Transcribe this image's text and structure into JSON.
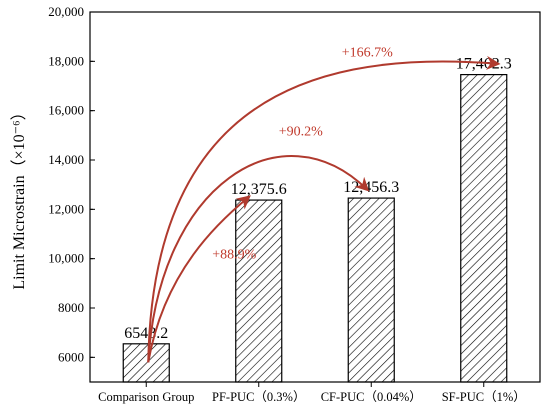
{
  "chart_data": {
    "type": "bar",
    "categories": [
      "Comparison Group",
      "PF-PUC（0.3%）",
      "CF-PUC（0.04%）",
      "SF-PUC（1%）"
    ],
    "values": [
      6548.2,
      12375.6,
      12456.3,
      17462.3
    ],
    "value_labels": [
      "6548.2",
      "12,375.6",
      "12,456.3",
      "17,462.3"
    ],
    "ylabel": "Limit Microstrain（×10⁻⁶）",
    "ylim": [
      5000,
      20000
    ],
    "yticks": [
      6000,
      8000,
      10000,
      12000,
      14000,
      16000,
      18000,
      20000
    ],
    "ytick_labels": [
      "6000",
      "8000",
      "10,000",
      "12,000",
      "14,000",
      "16,000",
      "18,000",
      "20,000"
    ],
    "bar_pattern": "diagonal-hatch",
    "grid": false,
    "annotations": [
      {
        "text": "+88.9%",
        "from": 0,
        "to": 1
      },
      {
        "text": "+90.2%",
        "from": 0,
        "to": 2
      },
      {
        "text": "+166.7%",
        "from": 0,
        "to": 3
      }
    ],
    "colors": {
      "bar_stroke": "#000000",
      "hatch": "#000000",
      "arrow": "#b03a2e",
      "annotation": "#c0392b"
    }
  }
}
